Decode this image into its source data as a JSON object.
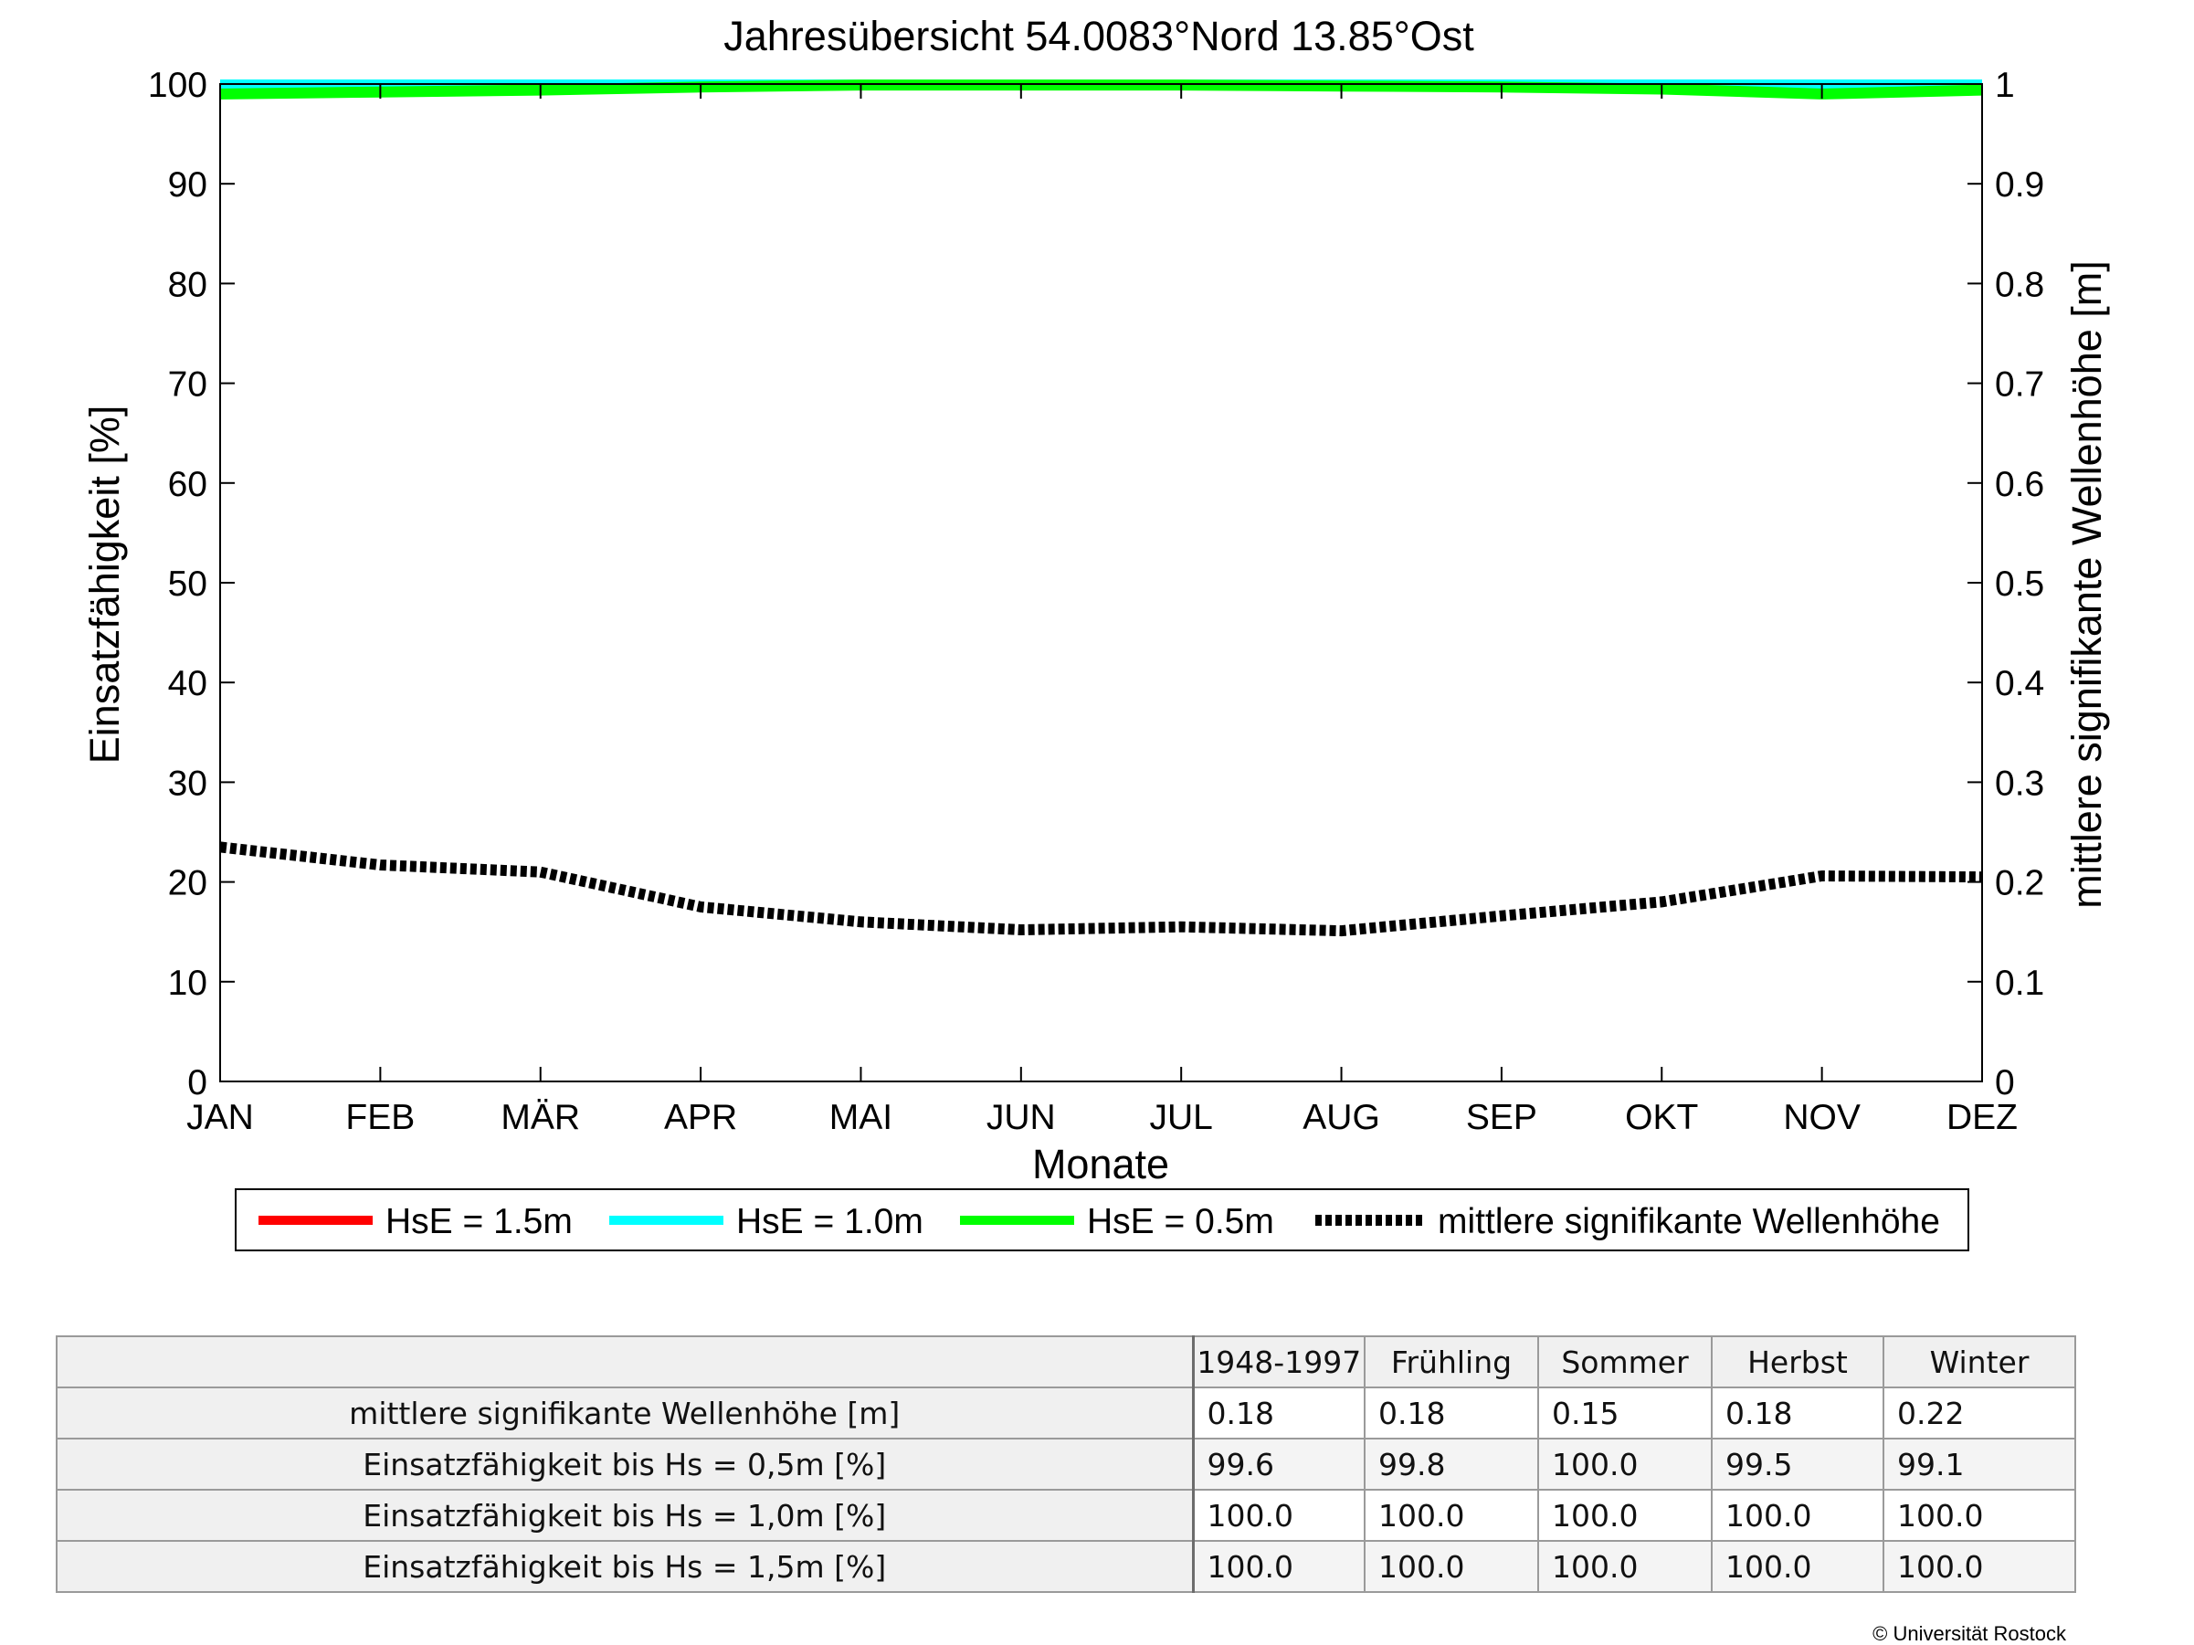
{
  "chart_data": {
    "type": "line",
    "title": "Jahresübersicht  54.0083°Nord  13.85°Ost",
    "xlabel": "Monate",
    "ylabel": "Einsatzfähigkeit [%]",
    "ylabel_right": "mittlere signifikante Wellenhöhe [m]",
    "categories": [
      "JAN",
      "FEB",
      "MÄR",
      "APR",
      "MAI",
      "JUN",
      "JUL",
      "AUG",
      "SEP",
      "OKT",
      "NOV",
      "DEZ"
    ],
    "ylim": [
      0,
      100
    ],
    "yticks": [
      "0",
      "10",
      "20",
      "30",
      "40",
      "50",
      "60",
      "70",
      "80",
      "90",
      "100"
    ],
    "ylim_right": [
      0,
      1
    ],
    "yticks_right": [
      "0",
      "0.1",
      "0.2",
      "0.3",
      "0.4",
      "0.5",
      "0.6",
      "0.7",
      "0.8",
      "0.9",
      "1"
    ],
    "grid": false,
    "legend_position": "bottom",
    "series": [
      {
        "name": "HsE = 1.5m",
        "color": "#ff0000",
        "axis": "left",
        "values": [
          100,
          100,
          100,
          100,
          100,
          100,
          100,
          100,
          100,
          100,
          100,
          100
        ]
      },
      {
        "name": "HsE = 1.0m",
        "color": "#00ffff",
        "axis": "left",
        "values": [
          100,
          100,
          100,
          100,
          100,
          100,
          100,
          100,
          100,
          100,
          100,
          100
        ]
      },
      {
        "name": "HsE = 0.5m",
        "color": "#00ff00",
        "axis": "left",
        "values": [
          99.0,
          99.2,
          99.4,
          99.7,
          99.9,
          99.9,
          99.9,
          99.8,
          99.7,
          99.5,
          99.0,
          99.4
        ]
      },
      {
        "name": "mittlere signifikante Wellenhöhe",
        "color": "#000000",
        "axis": "right",
        "style": "dotted",
        "values": [
          0.235,
          0.217,
          0.21,
          0.175,
          0.16,
          0.152,
          0.155,
          0.151,
          0.166,
          0.18,
          0.206,
          0.205
        ]
      }
    ]
  },
  "table": {
    "headers": [
      "1948-1997",
      "Frühling",
      "Sommer",
      "Herbst",
      "Winter"
    ],
    "rows": [
      {
        "label": "mittlere signifikante Wellenhöhe [m]",
        "values": [
          "0.18",
          "0.18",
          "0.15",
          "0.18",
          "0.22"
        ]
      },
      {
        "label": "Einsatzfähigkeit bis Hs = 0,5m [%]",
        "values": [
          "99.6",
          "99.8",
          "100.0",
          "99.5",
          "99.1"
        ]
      },
      {
        "label": "Einsatzfähigkeit bis Hs = 1,0m [%]",
        "values": [
          "100.0",
          "100.0",
          "100.0",
          "100.0",
          "100.0"
        ]
      },
      {
        "label": "Einsatzfähigkeit bis Hs = 1,5m [%]",
        "values": [
          "100.0",
          "100.0",
          "100.0",
          "100.0",
          "100.0"
        ]
      }
    ]
  },
  "copyright": "© Universität Rostock"
}
